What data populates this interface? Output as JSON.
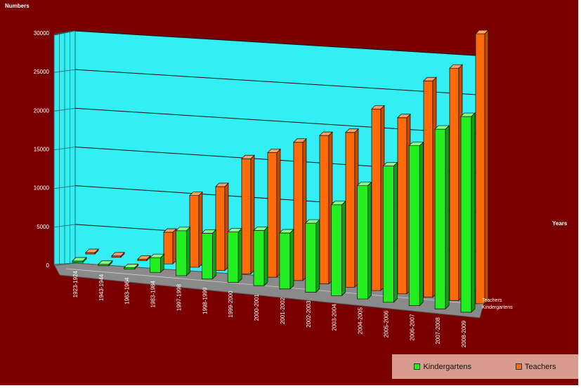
{
  "chart_data": {
    "type": "bar",
    "title": "",
    "ylabel": "Numbers",
    "xlabel": "Years",
    "ylim": [
      0,
      30000
    ],
    "yticks": [
      "0",
      "5000",
      "10000",
      "15000",
      "20000",
      "25000",
      "30000"
    ],
    "categories": [
      "1923-1924",
      "1943-1944",
      "1963-1964",
      "1983-1984",
      "1997-1998",
      "1998-1999",
      "1999-2000",
      "2000-2001",
      "2001-2002",
      "2002-2003",
      "2003-2004",
      "2004-2005",
      "2005-2006",
      "2006-2007",
      "2007-2008",
      "2008-2009"
    ],
    "series": [
      {
        "name": "Kindergartens",
        "color": "#22ee22",
        "values": [
          0,
          0,
          0,
          2000,
          6000,
          6000,
          6500,
          7000,
          7000,
          8500,
          11000,
          13500,
          16000,
          18500,
          20500,
          22000
        ]
      },
      {
        "name": "Teachers",
        "color": "#ff6a0a",
        "values": [
          0,
          0,
          0,
          4500,
          10000,
          11500,
          15500,
          16500,
          18000,
          19000,
          19500,
          22500,
          21500,
          26000,
          27500,
          31500
        ]
      }
    ],
    "depth_labels": [
      "Teachers",
      "Kindergartens"
    ],
    "grid": true,
    "legend_position": "bottom-right",
    "wall_color": "#33eef2",
    "background_color": "#7a0000"
  }
}
